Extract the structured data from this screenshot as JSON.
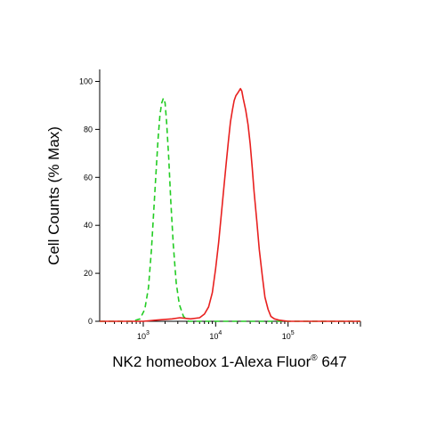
{
  "chart_data": {
    "type": "line",
    "title": "",
    "xlabel_main": "NK2 homeobox 1-Alexa Fluor",
    "xlabel_sup": "®",
    "xlabel_tail": " 647",
    "ylabel": "Cell Counts (% Max)",
    "x_scale": "log",
    "xlim": [
      250,
      1000000
    ],
    "ylim": [
      0,
      105
    ],
    "y_ticks": [
      0,
      20,
      40,
      60,
      80,
      100
    ],
    "x_tick_labels": [
      {
        "value": 1000,
        "base": "10",
        "exp": "3"
      },
      {
        "value": 10000,
        "base": "10",
        "exp": "4"
      },
      {
        "value": 100000,
        "base": "10",
        "exp": "5"
      }
    ],
    "grid": false,
    "series": [
      {
        "color": "#22cc22",
        "style": "dashed",
        "points": [
          [
            250,
            0
          ],
          [
            700,
            0
          ],
          [
            900,
            1
          ],
          [
            1050,
            5
          ],
          [
            1180,
            14
          ],
          [
            1300,
            30
          ],
          [
            1400,
            47
          ],
          [
            1500,
            62
          ],
          [
            1600,
            76
          ],
          [
            1700,
            86
          ],
          [
            1800,
            91
          ],
          [
            1900,
            93
          ],
          [
            2000,
            91
          ],
          [
            2100,
            83
          ],
          [
            2250,
            68
          ],
          [
            2400,
            50
          ],
          [
            2600,
            32
          ],
          [
            2850,
            16
          ],
          [
            3150,
            7
          ],
          [
            3600,
            2
          ],
          [
            4200,
            0
          ],
          [
            20000,
            0
          ],
          [
            1000000,
            0
          ]
        ]
      },
      {
        "color": "#e8201f",
        "style": "solid",
        "points": [
          [
            250,
            0
          ],
          [
            1000,
            0
          ],
          [
            1500,
            0.5
          ],
          [
            2500,
            1
          ],
          [
            3200,
            1.5
          ],
          [
            4500,
            1
          ],
          [
            6000,
            1.5
          ],
          [
            7000,
            3
          ],
          [
            8000,
            6
          ],
          [
            9000,
            12
          ],
          [
            10000,
            22
          ],
          [
            11000,
            33
          ],
          [
            12000,
            45
          ],
          [
            13000,
            56
          ],
          [
            14000,
            66
          ],
          [
            15000,
            75
          ],
          [
            16000,
            83
          ],
          [
            17000,
            88
          ],
          [
            18000,
            92
          ],
          [
            19000,
            94
          ],
          [
            20000,
            95
          ],
          [
            21000,
            96
          ],
          [
            22000,
            97
          ],
          [
            23000,
            96
          ],
          [
            24000,
            93
          ],
          [
            26000,
            88
          ],
          [
            28000,
            82
          ],
          [
            30000,
            74
          ],
          [
            32000,
            64
          ],
          [
            34000,
            54
          ],
          [
            37000,
            42
          ],
          [
            40000,
            30
          ],
          [
            44000,
            19
          ],
          [
            48000,
            10
          ],
          [
            53000,
            5
          ],
          [
            58000,
            2
          ],
          [
            65000,
            1
          ],
          [
            75000,
            0.5
          ],
          [
            100000,
            0
          ],
          [
            1000000,
            0
          ]
        ]
      }
    ]
  }
}
